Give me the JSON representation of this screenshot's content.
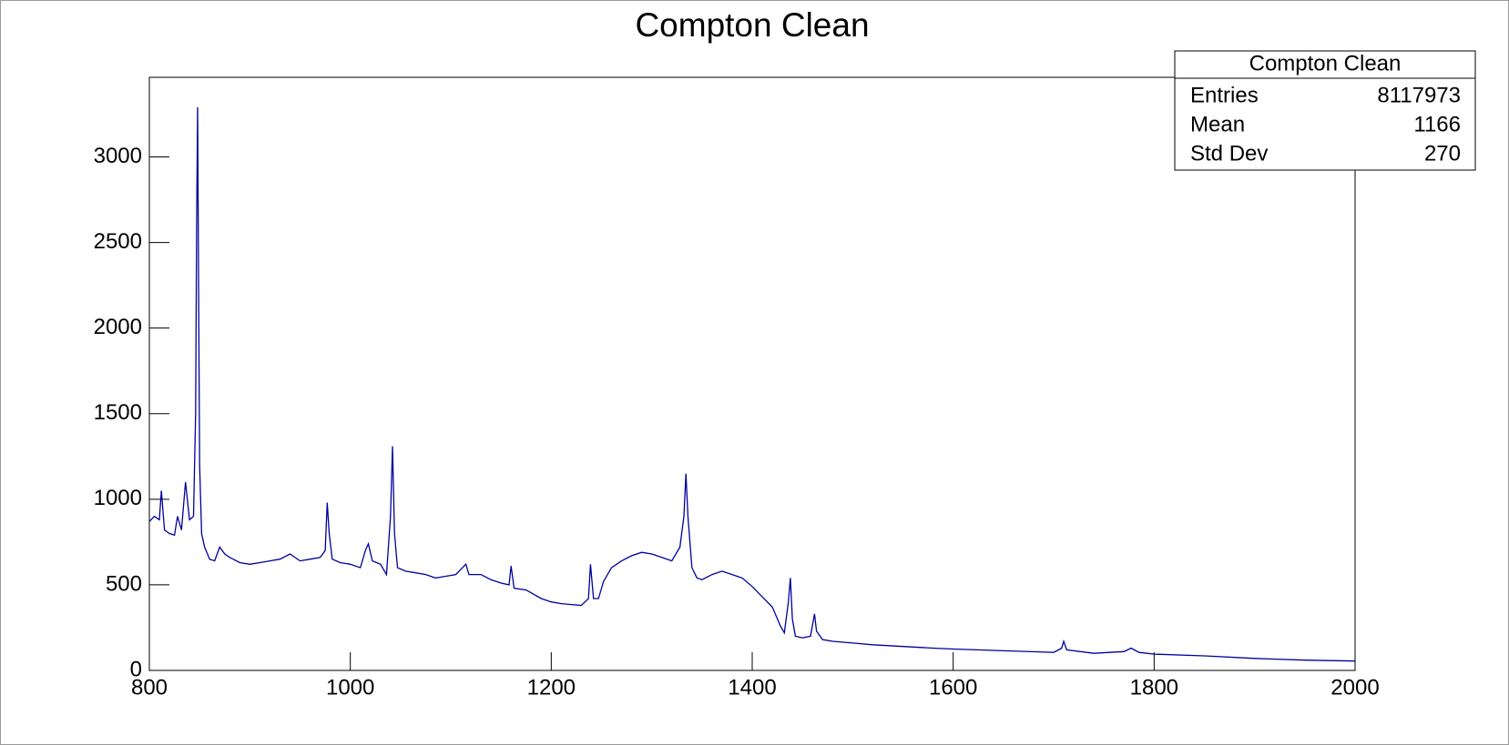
{
  "chart_data": {
    "type": "line",
    "title": "Compton Clean",
    "series": [
      {
        "name": "Compton Clean",
        "color": "#00009c",
        "x": [
          800,
          805,
          810,
          812,
          815,
          820,
          825,
          828,
          832,
          836,
          840,
          844,
          846,
          847,
          848,
          849,
          850,
          852,
          855,
          860,
          865,
          870,
          875,
          880,
          890,
          900,
          910,
          920,
          930,
          940,
          950,
          960,
          970,
          975,
          977,
          979,
          982,
          990,
          1000,
          1010,
          1015,
          1018,
          1022,
          1030,
          1036,
          1040,
          1042,
          1044,
          1047,
          1055,
          1065,
          1075,
          1085,
          1095,
          1105,
          1115,
          1118,
          1130,
          1140,
          1150,
          1158,
          1160,
          1163,
          1175,
          1190,
          1200,
          1210,
          1220,
          1230,
          1237,
          1239,
          1242,
          1247,
          1252,
          1260,
          1270,
          1280,
          1290,
          1300,
          1310,
          1320,
          1328,
          1332,
          1334,
          1336,
          1340,
          1345,
          1350,
          1360,
          1370,
          1380,
          1390,
          1400,
          1410,
          1420,
          1428,
          1432,
          1436,
          1438,
          1440,
          1443,
          1450,
          1458,
          1462,
          1464,
          1470,
          1480,
          1500,
          1520,
          1550,
          1580,
          1600,
          1650,
          1700,
          1708,
          1710,
          1713,
          1740,
          1770,
          1777,
          1785,
          1800,
          1850,
          1900,
          1950,
          2000
        ],
        "values": [
          870,
          900,
          880,
          1050,
          820,
          800,
          790,
          900,
          820,
          1100,
          880,
          900,
          1500,
          2600,
          3290,
          2200,
          1200,
          800,
          720,
          650,
          640,
          720,
          680,
          660,
          630,
          620,
          630,
          640,
          650,
          680,
          640,
          650,
          660,
          700,
          980,
          800,
          650,
          630,
          620,
          600,
          700,
          740,
          640,
          620,
          560,
          900,
          1310,
          800,
          600,
          580,
          570,
          560,
          540,
          550,
          560,
          620,
          560,
          560,
          530,
          510,
          500,
          610,
          480,
          470,
          420,
          400,
          390,
          385,
          380,
          420,
          620,
          420,
          420,
          520,
          600,
          640,
          670,
          690,
          680,
          660,
          640,
          720,
          900,
          1150,
          900,
          600,
          540,
          530,
          560,
          580,
          560,
          540,
          490,
          430,
          370,
          260,
          220,
          400,
          540,
          300,
          200,
          190,
          200,
          330,
          230,
          180,
          170,
          160,
          150,
          140,
          130,
          125,
          115,
          105,
          130,
          170,
          120,
          100,
          110,
          130,
          105,
          95,
          85,
          70,
          60,
          55
        ]
      }
    ],
    "xlim": [
      800,
      2000
    ],
    "xticks": [
      800,
      1000,
      1200,
      1400,
      1600,
      1800,
      2000
    ],
    "ylim": [
      0,
      3465
    ],
    "yticks": [
      0,
      500,
      1000,
      1500,
      2000,
      2500,
      3000
    ],
    "stats_box": {
      "title": "Compton Clean",
      "rows": [
        {
          "label": "Entries",
          "value": 8117973
        },
        {
          "label": "Mean",
          "value": 1166
        },
        {
          "label": "Std Dev",
          "value": 270
        }
      ]
    }
  }
}
